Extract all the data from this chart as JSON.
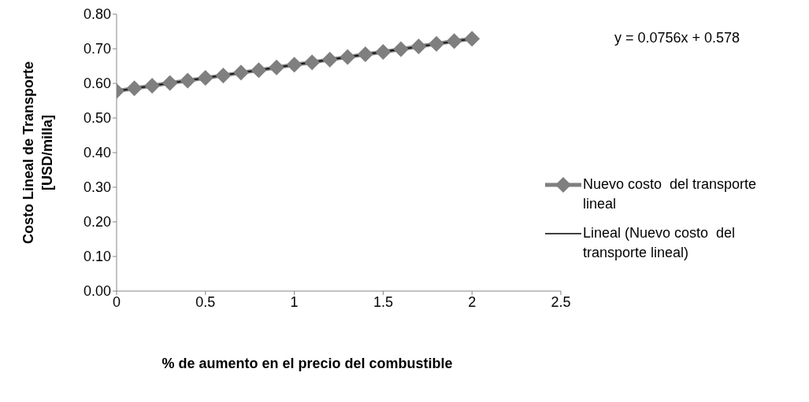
{
  "chart_data": {
    "type": "line",
    "xlabel": "% de aumento en el precio del combustible",
    "ylabel": "Costo Lineal de Transporte [USD/milla]",
    "xlim": [
      0,
      2.5
    ],
    "xticks": [
      0,
      0.5,
      1,
      1.5,
      2,
      2.5
    ],
    "ylim": [
      0,
      0.8
    ],
    "yticks": [
      {
        "value": 0,
        "label": "0.00"
      },
      {
        "value": 0.1,
        "label": "0.10"
      },
      {
        "value": 0.2,
        "label": "0.20"
      },
      {
        "value": 0.3,
        "label": "0.30"
      },
      {
        "value": 0.4,
        "label": "0.40"
      },
      {
        "value": 0.5,
        "label": "0.50"
      },
      {
        "value": 0.6,
        "label": "0.60"
      },
      {
        "value": 0.7,
        "label": "0.70"
      },
      {
        "value": 0.8,
        "label": "0.80"
      }
    ],
    "grid": false,
    "legend": "right",
    "annotations": [
      "y = 0.0756x + 0.578"
    ],
    "series": [
      {
        "name": "Nuevo costo  del transporte lineal",
        "color": "#7f7f7f",
        "marker": "diamond",
        "line_style": "solid",
        "x": [
          0,
          0.1,
          0.2,
          0.3,
          0.4,
          0.5,
          0.6,
          0.7,
          0.8,
          0.9,
          1,
          1.1,
          1.2,
          1.3,
          1.4,
          1.5,
          1.6,
          1.7,
          1.8,
          1.9,
          2
        ],
        "values": [
          0.578,
          0.586,
          0.593,
          0.601,
          0.608,
          0.616,
          0.623,
          0.631,
          0.638,
          0.646,
          0.654,
          0.661,
          0.669,
          0.676,
          0.684,
          0.691,
          0.699,
          0.707,
          0.714,
          0.722,
          0.729
        ]
      },
      {
        "name": "Lineal (Nuevo costo  del transporte lineal)",
        "color": "#000000",
        "marker": "none",
        "line_style": "solid",
        "x": [
          0,
          2
        ],
        "values": [
          0.578,
          0.729
        ]
      }
    ]
  }
}
